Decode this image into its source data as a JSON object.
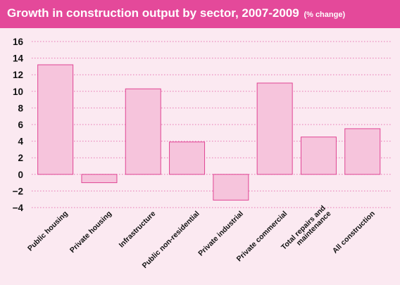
{
  "colors": {
    "title_bar": "#e4499a",
    "background": "#fbe9f1",
    "bar_fill": "#f6c4dc",
    "bar_stroke": "#e04594",
    "grid": "#e777b3"
  },
  "chart_data": {
    "type": "bar",
    "title": "Growth in construction output by sector, 2007-2009",
    "unit": "(% change)",
    "xlabel": "",
    "ylabel": "",
    "ylim": [
      -4,
      16
    ],
    "yticks": [
      16,
      14,
      12,
      10,
      8,
      6,
      4,
      2,
      0,
      -2,
      -4
    ],
    "grid": "horizontal dotted",
    "categories": [
      [
        "Public housing"
      ],
      [
        "Private housing"
      ],
      [
        "Infrastructure"
      ],
      [
        "Public non-residential"
      ],
      [
        "Private industrial"
      ],
      [
        "Private commercial"
      ],
      [
        "Total repairs and",
        "maintenance"
      ],
      [
        "All construction"
      ]
    ],
    "values": [
      13.2,
      -1.0,
      10.3,
      3.9,
      -3.1,
      11.0,
      4.5,
      5.5
    ]
  }
}
